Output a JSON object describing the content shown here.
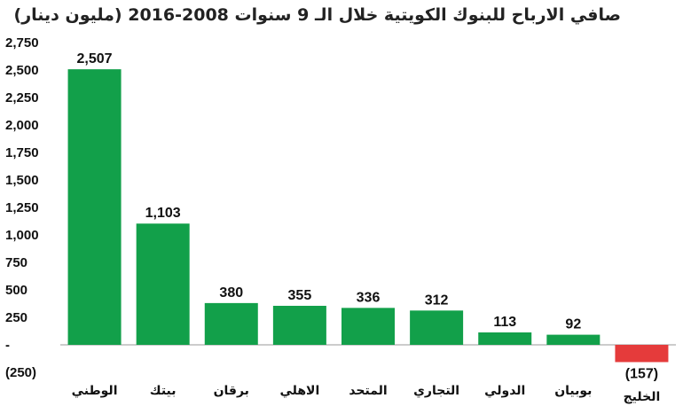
{
  "chart_data": {
    "type": "bar",
    "title": "صافي الارباح  للبنوك الكويتية خلال الـ 9 سنوات 2008-2016 (مليون دينار)",
    "categories": [
      "الوطني",
      "بيتك",
      "برقان",
      "الاهلي",
      "المتحد",
      "التجاري",
      "الدولي",
      "بوبيان",
      "الخليج"
    ],
    "values": [
      2507,
      1103,
      380,
      355,
      336,
      312,
      113,
      92,
      -157
    ],
    "data_labels": [
      "2,507",
      "1,103",
      "380",
      "355",
      "336",
      "312",
      "113",
      "92",
      "(157)"
    ],
    "y_ticks": [
      2750,
      2500,
      2250,
      2000,
      1750,
      1500,
      1250,
      1000,
      750,
      500,
      250,
      0,
      -250
    ],
    "y_tick_labels": [
      "2,750",
      "2,500",
      "2,250",
      "2,000",
      "1,750",
      "1,500",
      "1,250",
      "1,000",
      "750",
      "500",
      "250",
      "-",
      "(250)"
    ],
    "ylim": [
      -250,
      2750
    ],
    "grid": false,
    "legend": "none",
    "colors": {
      "positive": "#12a04a",
      "negative": "#e53b3b",
      "axis": "#999999"
    }
  }
}
